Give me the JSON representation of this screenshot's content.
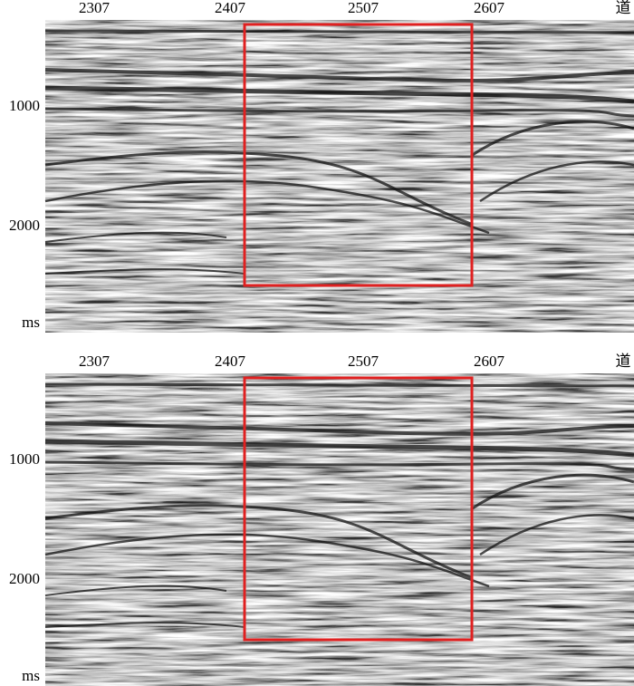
{
  "panels": [
    {
      "trace_labels": [
        2307,
        2407,
        2507,
        2607
      ],
      "trace_unit": "道",
      "time_labels": [
        1000,
        2000
      ],
      "time_unit": "ms"
    },
    {
      "trace_labels": [
        2307,
        2407,
        2507,
        2607
      ],
      "trace_unit": "道",
      "time_labels": [
        1000,
        2000
      ],
      "time_unit": "ms"
    }
  ]
}
